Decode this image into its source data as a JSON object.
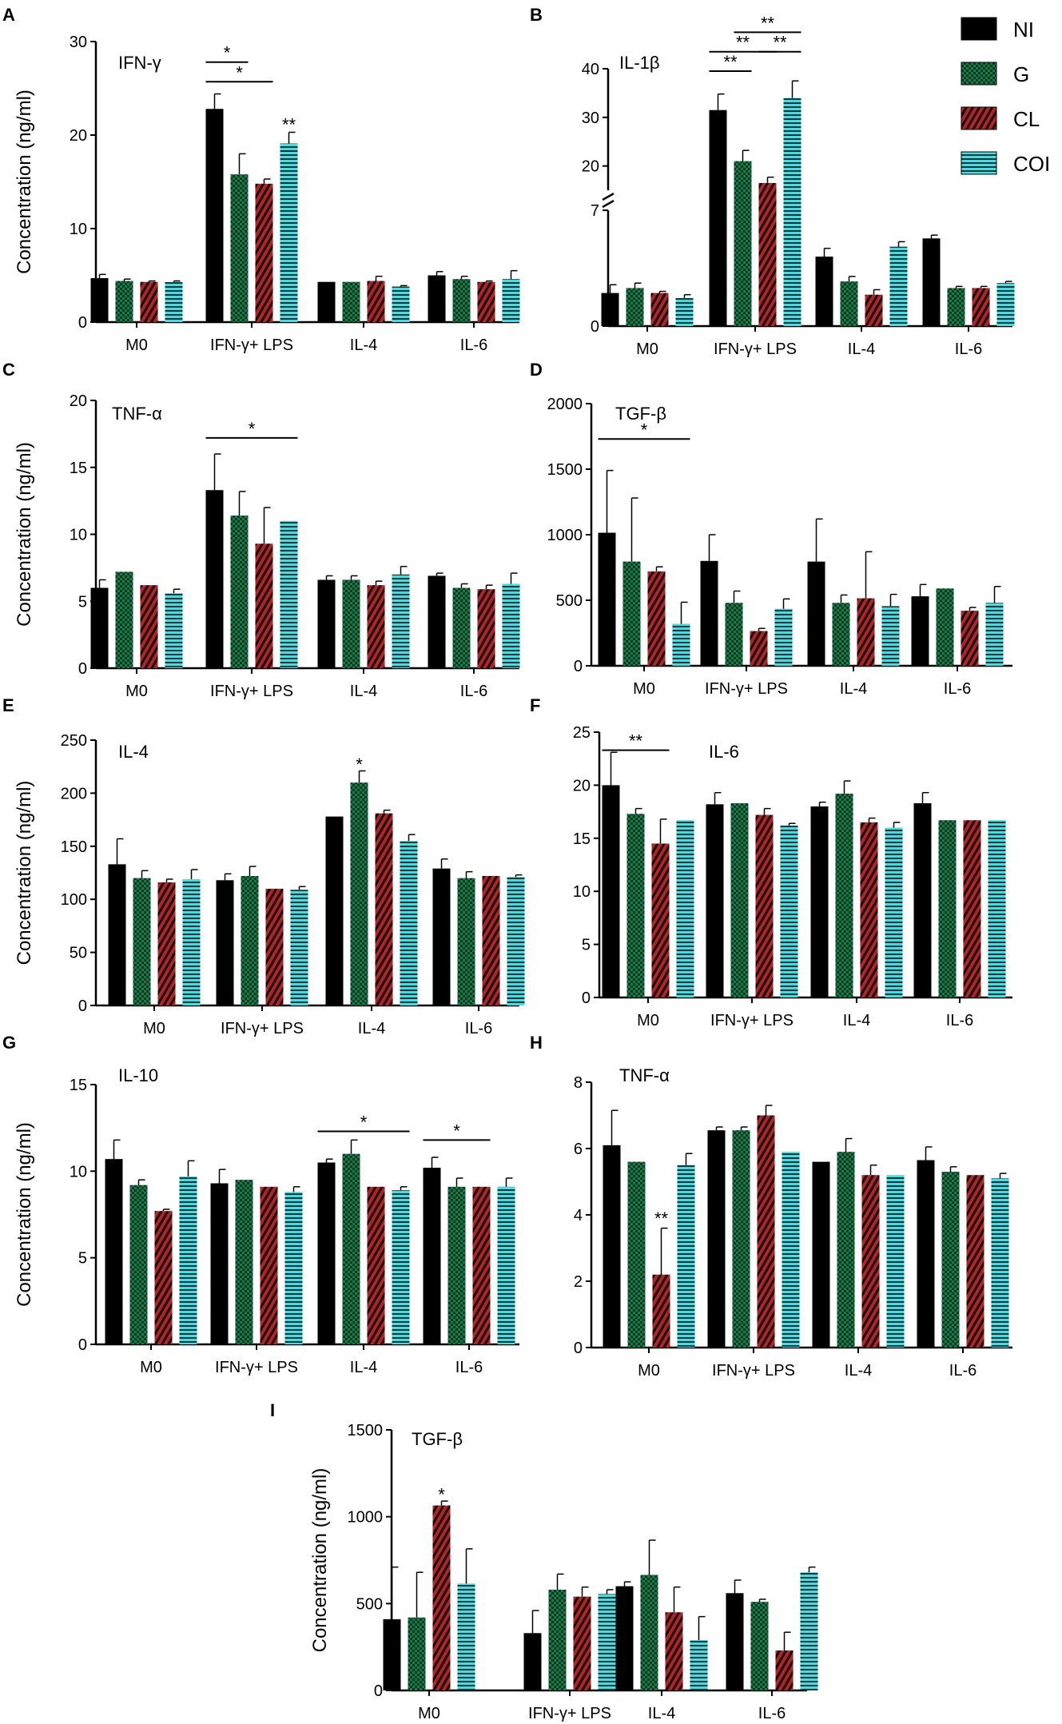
{
  "legend": {
    "entries": [
      {
        "label": "NI",
        "color": "#000000",
        "pattern": "solid"
      },
      {
        "label": "G",
        "color": "#1a7a48",
        "pattern": "checker"
      },
      {
        "label": "CL",
        "color": "#a8282a",
        "pattern": "stripe"
      },
      {
        "label": "COI",
        "color": "#45d0d8",
        "pattern": "hline"
      }
    ]
  },
  "ylabel": "Concentration (ng/ml)",
  "categories": [
    "M0",
    "IFN-γ+ LPS",
    "IL-4",
    "IL-6"
  ],
  "chart_data": [
    {
      "type": "bar",
      "panel": "A",
      "title": "IFN-γ",
      "ylim": [
        0,
        30
      ],
      "yticks": [
        0,
        10,
        20,
        30
      ],
      "ytick_labels": [
        "0",
        "10",
        "20",
        "30"
      ],
      "series": [
        {
          "name": "NI",
          "values": [
            4.7,
            22.8,
            4.3,
            5.0
          ],
          "errors": [
            0.4,
            1.6,
            0.0,
            0.4
          ]
        },
        {
          "name": "G",
          "values": [
            4.4,
            15.8,
            4.3,
            4.6
          ],
          "errors": [
            0.2,
            2.2,
            0.0,
            0.3
          ]
        },
        {
          "name": "CL",
          "values": [
            4.3,
            14.8,
            4.4,
            4.3
          ],
          "errors": [
            0.1,
            0.5,
            0.5,
            0.1
          ]
        },
        {
          "name": "COI",
          "values": [
            4.3,
            19.1,
            3.8,
            4.6
          ],
          "errors": [
            0.1,
            1.2,
            0.1,
            0.9
          ]
        }
      ],
      "annotations": [
        {
          "label": "*",
          "from": [
            1,
            0
          ],
          "to": [
            1,
            1
          ],
          "y": 27.8
        },
        {
          "label": "*",
          "from": [
            1,
            0
          ],
          "to": [
            1,
            2
          ],
          "y": 25.7
        },
        {
          "label": "**",
          "at": [
            1,
            3
          ],
          "y": 21.0
        }
      ]
    },
    {
      "type": "bar",
      "panel": "B",
      "title": "IL-1β",
      "broken_axis": true,
      "ylim": [
        0,
        40
      ],
      "yticks": [
        0,
        7,
        20,
        30,
        40
      ],
      "ytick_labels": [
        "0",
        "7",
        "20",
        "30",
        "40"
      ],
      "series": [
        {
          "name": "NI",
          "values": [
            2.0,
            31.5,
            4.2,
            5.3
          ],
          "errors": [
            0.5,
            3.3,
            0.5,
            0.2
          ]
        },
        {
          "name": "G",
          "values": [
            2.3,
            21.0,
            2.7,
            2.3
          ],
          "errors": [
            0.3,
            2.2,
            0.3,
            0.1
          ]
        },
        {
          "name": "CL",
          "values": [
            2.0,
            16.5,
            1.9,
            2.3
          ],
          "errors": [
            0.1,
            1.2,
            0.3,
            0.1
          ]
        },
        {
          "name": "COI",
          "values": [
            1.7,
            34.0,
            4.8,
            2.6
          ],
          "errors": [
            0.2,
            3.5,
            0.3,
            0.1
          ]
        }
      ],
      "annotations": [
        {
          "label": "**",
          "from": [
            1,
            0
          ],
          "to": [
            1,
            1
          ],
          "y": 39.5
        },
        {
          "label": "**",
          "from": [
            1,
            0
          ],
          "to": [
            1,
            2
          ],
          "y": 43.5
        },
        {
          "label": "**",
          "from": [
            1,
            1
          ],
          "to": [
            1,
            3
          ],
          "y": 47.5
        },
        {
          "label": "**",
          "from": [
            1,
            2
          ],
          "to": [
            1,
            3
          ],
          "y": 43.5
        }
      ]
    },
    {
      "type": "bar",
      "panel": "C",
      "title": "TNF-α",
      "ylim": [
        0,
        20
      ],
      "yticks": [
        0,
        5,
        10,
        15,
        20
      ],
      "ytick_labels": [
        "0",
        "5",
        "10",
        "15",
        "20"
      ],
      "series": [
        {
          "name": "NI",
          "values": [
            6.0,
            13.3,
            6.6,
            6.9
          ],
          "errors": [
            0.6,
            2.7,
            0.3,
            0.2
          ]
        },
        {
          "name": "G",
          "values": [
            7.2,
            11.4,
            6.6,
            6.0
          ],
          "errors": [
            0.0,
            1.8,
            0.3,
            0.3
          ]
        },
        {
          "name": "CL",
          "values": [
            6.2,
            9.3,
            6.2,
            5.9
          ],
          "errors": [
            0.0,
            2.7,
            0.3,
            0.3
          ]
        },
        {
          "name": "COI",
          "values": [
            5.6,
            11.0,
            7.0,
            6.3
          ],
          "errors": [
            0.3,
            0.0,
            0.6,
            0.8
          ]
        }
      ],
      "annotations": [
        {
          "label": "*",
          "from": [
            1,
            0
          ],
          "to": [
            1,
            3
          ],
          "y": 17.2
        }
      ]
    },
    {
      "type": "bar",
      "panel": "D",
      "title": "TGF-β",
      "ylim": [
        0,
        2000
      ],
      "yticks": [
        0,
        500,
        1000,
        1500,
        2000
      ],
      "ytick_labels": [
        "0",
        "500",
        "1000",
        "1500",
        "2000"
      ],
      "series": [
        {
          "name": "NI",
          "values": [
            1015,
            800,
            795,
            530
          ],
          "errors": [
            475,
            200,
            325,
            90
          ]
        },
        {
          "name": "G",
          "values": [
            795,
            480,
            480,
            590
          ],
          "errors": [
            485,
            90,
            60,
            0
          ]
        },
        {
          "name": "CL",
          "values": [
            720,
            265,
            515,
            420
          ],
          "errors": [
            35,
            20,
            355,
            25
          ]
        },
        {
          "name": "COI",
          "values": [
            320,
            435,
            455,
            480
          ],
          "errors": [
            165,
            75,
            90,
            125
          ]
        }
      ],
      "annotations": [
        {
          "label": "*",
          "from": [
            0,
            0
          ],
          "to": [
            0,
            3
          ],
          "y": 1730
        }
      ]
    },
    {
      "type": "bar",
      "panel": "E",
      "title": "IL-4",
      "ylim": [
        0,
        250
      ],
      "yticks": [
        0,
        50,
        100,
        150,
        200,
        250
      ],
      "ytick_labels": [
        "0",
        "50",
        "100",
        "150",
        "200",
        "250"
      ],
      "series": [
        {
          "name": "NI",
          "values": [
            133,
            118,
            178,
            129
          ],
          "errors": [
            24,
            6,
            0,
            9
          ]
        },
        {
          "name": "G",
          "values": [
            120,
            122,
            210,
            120
          ],
          "errors": [
            7,
            9,
            11,
            6
          ]
        },
        {
          "name": "CL",
          "values": [
            116,
            110,
            181,
            122
          ],
          "errors": [
            3,
            0,
            3,
            0
          ]
        },
        {
          "name": "COI",
          "values": [
            119,
            109,
            155,
            121
          ],
          "errors": [
            9,
            3,
            6,
            2
          ]
        }
      ],
      "annotations": [
        {
          "label": "*",
          "at": [
            2,
            1
          ],
          "y": 226
        }
      ]
    },
    {
      "type": "bar",
      "panel": "F",
      "title": "IL-6",
      "ylim": [
        0,
        25
      ],
      "yticks": [
        0,
        5,
        10,
        15,
        20,
        25
      ],
      "ytick_labels": [
        "0",
        "5",
        "10",
        "15",
        "20",
        "25"
      ],
      "series": [
        {
          "name": "NI",
          "values": [
            20.0,
            18.2,
            18.0,
            18.3
          ],
          "errors": [
            3.1,
            1.1,
            0.4,
            1.0
          ]
        },
        {
          "name": "G",
          "values": [
            17.3,
            18.3,
            19.2,
            16.7
          ],
          "errors": [
            0.5,
            0.0,
            1.2,
            0.0
          ]
        },
        {
          "name": "CL",
          "values": [
            14.5,
            17.2,
            16.5,
            16.7
          ],
          "errors": [
            2.3,
            0.6,
            0.4,
            0.0
          ]
        },
        {
          "name": "COI",
          "values": [
            16.7,
            16.2,
            16.0,
            16.7
          ],
          "errors": [
            0.0,
            0.2,
            0.5,
            0.0
          ]
        }
      ],
      "annotations": [
        {
          "label": "**",
          "from": [
            0,
            0
          ],
          "to": [
            0,
            2
          ],
          "y": 23.3
        }
      ]
    },
    {
      "type": "bar",
      "panel": "G",
      "title": "IL-10",
      "ylim": [
        0,
        15
      ],
      "yticks": [
        0,
        5,
        10,
        15
      ],
      "ytick_labels": [
        "0",
        "5",
        "10",
        "15"
      ],
      "series": [
        {
          "name": "NI",
          "values": [
            10.7,
            9.3,
            10.5,
            10.2
          ],
          "errors": [
            1.1,
            0.8,
            0.2,
            0.6
          ]
        },
        {
          "name": "G",
          "values": [
            9.2,
            9.5,
            11.0,
            9.1
          ],
          "errors": [
            0.3,
            0.0,
            0.8,
            0.5
          ]
        },
        {
          "name": "CL",
          "values": [
            7.7,
            9.1,
            9.1,
            9.1
          ],
          "errors": [
            0.1,
            0.0,
            0.0,
            0.0
          ]
        },
        {
          "name": "COI",
          "values": [
            9.7,
            8.8,
            8.9,
            9.1
          ],
          "errors": [
            0.9,
            0.3,
            0.2,
            0.5
          ]
        }
      ],
      "annotations": [
        {
          "label": "*",
          "from": [
            2,
            0
          ],
          "to": [
            2,
            3
          ],
          "y": 12.3
        },
        {
          "label": "*",
          "from": [
            3,
            0
          ],
          "to": [
            3,
            2
          ],
          "y": 11.8
        }
      ]
    },
    {
      "type": "bar",
      "panel": "H",
      "title": "TNF-α",
      "ylim": [
        0,
        8
      ],
      "yticks": [
        0,
        2,
        4,
        6,
        8
      ],
      "ytick_labels": [
        "0",
        "2",
        "4",
        "6",
        "8"
      ],
      "series": [
        {
          "name": "NI",
          "values": [
            6.1,
            6.55,
            5.6,
            5.65
          ],
          "errors": [
            1.05,
            0.1,
            0.0,
            0.4
          ]
        },
        {
          "name": "G",
          "values": [
            5.6,
            6.55,
            5.9,
            5.3
          ],
          "errors": [
            0.0,
            0.1,
            0.4,
            0.15
          ]
        },
        {
          "name": "CL",
          "values": [
            2.2,
            7.0,
            5.2,
            5.2
          ],
          "errors": [
            1.4,
            0.3,
            0.3,
            0.0
          ]
        },
        {
          "name": "COI",
          "values": [
            5.5,
            5.9,
            5.2,
            5.1
          ],
          "errors": [
            0.35,
            0.0,
            0.0,
            0.15
          ]
        }
      ],
      "annotations": [
        {
          "label": "**",
          "at": [
            0,
            2
          ],
          "y": 3.85
        }
      ]
    },
    {
      "type": "bar",
      "panel": "I",
      "title": "TGF-β",
      "ylim": [
        0,
        1500
      ],
      "yticks": [
        0,
        500,
        1000,
        1500
      ],
      "ytick_labels": [
        "0",
        "500",
        "1000",
        "1500"
      ],
      "series": [
        {
          "name": "NI",
          "values": [
            410,
            330,
            600,
            560
          ],
          "errors": [
            300,
            130,
            25,
            75
          ]
        },
        {
          "name": "G",
          "values": [
            420,
            580,
            665,
            510
          ],
          "errors": [
            260,
            90,
            200,
            15
          ]
        },
        {
          "name": "CL",
          "values": [
            1065,
            540,
            450,
            230
          ],
          "errors": [
            25,
            55,
            145,
            105
          ]
        },
        {
          "name": "COI",
          "values": [
            615,
            555,
            290,
            680
          ],
          "errors": [
            200,
            25,
            135,
            30
          ]
        }
      ],
      "annotations": [
        {
          "label": "*",
          "at": [
            0,
            2
          ],
          "y": 1120
        }
      ]
    }
  ]
}
